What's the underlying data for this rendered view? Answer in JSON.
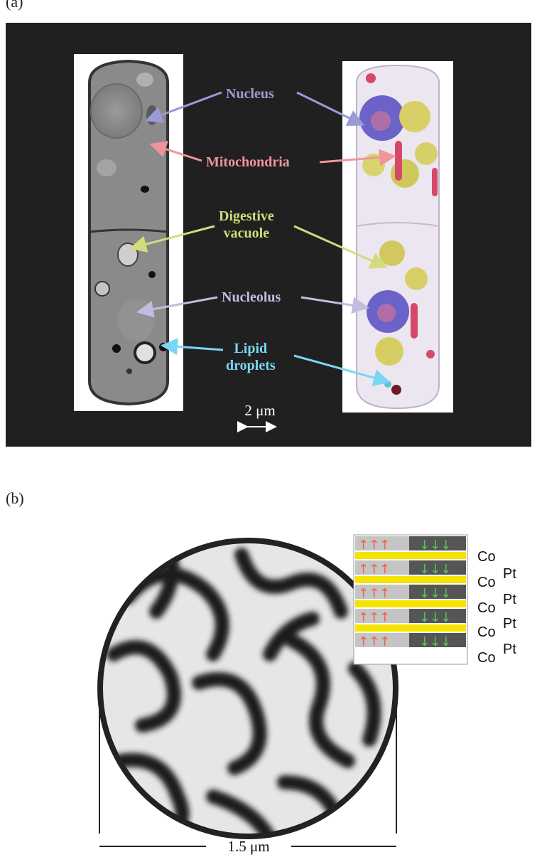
{
  "panel_a": {
    "label": "(a)",
    "callouts": {
      "nucleus": "Nucleus",
      "mitochondria": "Mitochondria",
      "digestive_line1": "Digestive",
      "digestive_line2": "vacuole",
      "nucleolus": "Nucleolus",
      "lipid_line1": "Lipid",
      "lipid_line2": "droplets"
    },
    "colors": {
      "nucleus": "#9a9ad8",
      "mitochondria": "#f0949a",
      "digestive_vacuole": "#d2dc7c",
      "nucleolus": "#c0bde0",
      "lipid_droplets": "#7ad6f4"
    },
    "scale_bar": "2 μm"
  },
  "panel_b": {
    "label": "(b)",
    "layers": [
      "Co",
      "Pt",
      "Co",
      "Pt",
      "Co",
      "Pt",
      "Co",
      "Pt",
      "Co"
    ],
    "scale_bar": "1.5 μm"
  }
}
